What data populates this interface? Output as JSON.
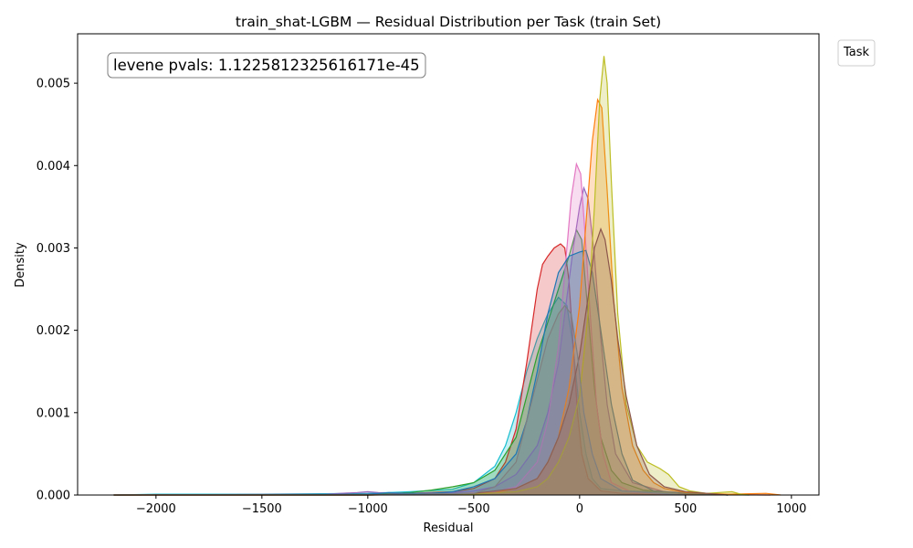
{
  "chart_data": {
    "type": "area",
    "title": "train_shat-LGBM — Residual Distribution per Task (train Set)",
    "xlabel": "Residual",
    "ylabel": "Density",
    "xlim": [
      -2370,
      1130
    ],
    "ylim": [
      0,
      0.0056
    ],
    "xticks": [
      -2000,
      -1500,
      -1000,
      -500,
      0,
      500,
      1000
    ],
    "xtick_labels": [
      "−2000",
      "−1500",
      "−1000",
      "−500",
      "0",
      "500",
      "1000"
    ],
    "yticks": [
      0,
      0.001,
      0.002,
      0.003,
      0.004,
      0.005
    ],
    "ytick_labels": [
      "0.000",
      "0.001",
      "0.002",
      "0.003",
      "0.004",
      "0.005"
    ],
    "grid": false,
    "legend": {
      "title": "Task",
      "placement": "outside-top-right",
      "entries": []
    },
    "annotation": "levene pvals: 1.1225812325616171e-45",
    "series": [
      {
        "color": "#17becf",
        "points": [
          [
            -2200,
            0
          ],
          [
            -2000,
            1e-05
          ],
          [
            -1500,
            1e-05
          ],
          [
            -1000,
            2e-05
          ],
          [
            -800,
            4e-05
          ],
          [
            -600,
            7e-05
          ],
          [
            -500,
            0.00015
          ],
          [
            -400,
            0.00035
          ],
          [
            -350,
            0.0006
          ],
          [
            -300,
            0.001
          ],
          [
            -250,
            0.0015
          ],
          [
            -200,
            0.0019
          ],
          [
            -150,
            0.0022
          ],
          [
            -100,
            0.0024
          ],
          [
            -60,
            0.0023
          ],
          [
            -30,
            0.0018
          ],
          [
            0,
            0.001
          ],
          [
            30,
            0.0005
          ],
          [
            60,
            0.0002
          ],
          [
            100,
            8e-05
          ],
          [
            200,
            5e-05
          ],
          [
            350,
            4e-05
          ],
          [
            500,
            3e-05
          ],
          [
            600,
            1e-05
          ],
          [
            800,
            0
          ]
        ]
      },
      {
        "color": "#d62728",
        "points": [
          [
            -2200,
            0
          ],
          [
            -1500,
            0
          ],
          [
            -1000,
            1e-05
          ],
          [
            -800,
            2e-05
          ],
          [
            -600,
            4e-05
          ],
          [
            -500,
            8e-05
          ],
          [
            -400,
            0.0002
          ],
          [
            -350,
            0.0004
          ],
          [
            -300,
            0.0008
          ],
          [
            -250,
            0.0016
          ],
          [
            -200,
            0.0025
          ],
          [
            -175,
            0.0028
          ],
          [
            -150,
            0.0029
          ],
          [
            -120,
            0.003
          ],
          [
            -90,
            0.00305
          ],
          [
            -70,
            0.003
          ],
          [
            -50,
            0.0026
          ],
          [
            -30,
            0.0018
          ],
          [
            -10,
            0.001
          ],
          [
            10,
            0.0005
          ],
          [
            40,
            0.0002
          ],
          [
            100,
            5e-05
          ],
          [
            200,
            2e-05
          ],
          [
            400,
            1e-05
          ],
          [
            900,
            0
          ]
        ]
      },
      {
        "color": "#2ca02c",
        "points": [
          [
            -2200,
            0
          ],
          [
            -1000,
            1e-05
          ],
          [
            -800,
            3e-05
          ],
          [
            -700,
            6e-05
          ],
          [
            -600,
            0.0001
          ],
          [
            -500,
            0.00015
          ],
          [
            -400,
            0.0003
          ],
          [
            -300,
            0.0007
          ],
          [
            -250,
            0.0012
          ],
          [
            -200,
            0.0017
          ],
          [
            -150,
            0.0021
          ],
          [
            -100,
            0.0025
          ],
          [
            -50,
            0.0029
          ],
          [
            -15,
            0.00322
          ],
          [
            10,
            0.0031
          ],
          [
            40,
            0.0022
          ],
          [
            70,
            0.0013
          ],
          [
            100,
            0.0007
          ],
          [
            150,
            0.0003
          ],
          [
            200,
            0.00015
          ],
          [
            300,
            6e-05
          ],
          [
            500,
            2e-05
          ],
          [
            700,
            0
          ]
        ]
      },
      {
        "color": "#9467bd",
        "points": [
          [
            -2200,
            0
          ],
          [
            -1200,
            1e-05
          ],
          [
            -1050,
            3e-05
          ],
          [
            -1000,
            4e-05
          ],
          [
            -950,
            3e-05
          ],
          [
            -800,
            2e-05
          ],
          [
            -600,
            3e-05
          ],
          [
            -500,
            5e-05
          ],
          [
            -400,
            0.0001
          ],
          [
            -300,
            0.00025
          ],
          [
            -200,
            0.0006
          ],
          [
            -150,
            0.001
          ],
          [
            -100,
            0.0016
          ],
          [
            -60,
            0.0024
          ],
          [
            -30,
            0.003
          ],
          [
            0,
            0.0035
          ],
          [
            20,
            0.00373
          ],
          [
            40,
            0.0036
          ],
          [
            70,
            0.0029
          ],
          [
            100,
            0.0019
          ],
          [
            130,
            0.0011
          ],
          [
            170,
            0.0005
          ],
          [
            250,
            0.00015
          ],
          [
            400,
            4e-05
          ],
          [
            700,
            0
          ]
        ]
      },
      {
        "color": "#e377c2",
        "points": [
          [
            -2200,
            0
          ],
          [
            -1000,
            0
          ],
          [
            -600,
            1e-05
          ],
          [
            -400,
            4e-05
          ],
          [
            -300,
            0.0001
          ],
          [
            -200,
            0.0004
          ],
          [
            -150,
            0.0009
          ],
          [
            -100,
            0.0018
          ],
          [
            -70,
            0.0027
          ],
          [
            -40,
            0.0036
          ],
          [
            -15,
            0.00402
          ],
          [
            5,
            0.0039
          ],
          [
            25,
            0.0032
          ],
          [
            50,
            0.0022
          ],
          [
            80,
            0.0011
          ],
          [
            110,
            0.0005
          ],
          [
            150,
            0.00015
          ],
          [
            250,
            3e-05
          ],
          [
            500,
            0
          ]
        ]
      },
      {
        "color": "#1f77b4",
        "points": [
          [
            -2200,
            0
          ],
          [
            -1000,
            1e-05
          ],
          [
            -900,
            3e-05
          ],
          [
            -850,
            2e-05
          ],
          [
            -700,
            2e-05
          ],
          [
            -600,
            4e-05
          ],
          [
            -500,
            0.0001
          ],
          [
            -400,
            0.0002
          ],
          [
            -300,
            0.0005
          ],
          [
            -250,
            0.0009
          ],
          [
            -200,
            0.0015
          ],
          [
            -150,
            0.0022
          ],
          [
            -100,
            0.0027
          ],
          [
            -50,
            0.0029
          ],
          [
            0,
            0.00295
          ],
          [
            30,
            0.00297
          ],
          [
            60,
            0.0027
          ],
          [
            100,
            0.002
          ],
          [
            150,
            0.0011
          ],
          [
            200,
            0.0005
          ],
          [
            250,
            0.00018
          ],
          [
            350,
            5e-05
          ],
          [
            500,
            2e-05
          ],
          [
            700,
            0
          ]
        ]
      },
      {
        "color": "#ff7f0e",
        "points": [
          [
            -2200,
            0
          ],
          [
            -1000,
            0
          ],
          [
            -600,
            1e-05
          ],
          [
            -400,
            3e-05
          ],
          [
            -300,
            8e-05
          ],
          [
            -200,
            0.0002
          ],
          [
            -150,
            0.0004
          ],
          [
            -100,
            0.0007
          ],
          [
            -50,
            0.0013
          ],
          [
            0,
            0.0023
          ],
          [
            30,
            0.0033
          ],
          [
            60,
            0.0043
          ],
          [
            85,
            0.0048
          ],
          [
            105,
            0.0047
          ],
          [
            130,
            0.0037
          ],
          [
            160,
            0.0024
          ],
          [
            200,
            0.0013
          ],
          [
            250,
            0.0006
          ],
          [
            300,
            0.0003
          ],
          [
            350,
            0.00015
          ],
          [
            400,
            8e-05
          ],
          [
            500,
            3e-05
          ],
          [
            700,
            1e-05
          ],
          [
            880,
            2e-05
          ],
          [
            950,
            0
          ]
        ]
      },
      {
        "color": "#bcbd22",
        "points": [
          [
            -2200,
            0
          ],
          [
            -1000,
            0
          ],
          [
            -500,
            1e-05
          ],
          [
            -300,
            4e-05
          ],
          [
            -200,
            0.0001
          ],
          [
            -150,
            0.0002
          ],
          [
            -100,
            0.0004
          ],
          [
            -50,
            0.0007
          ],
          [
            0,
            0.0012
          ],
          [
            40,
            0.0022
          ],
          [
            70,
            0.0035
          ],
          [
            95,
            0.0048
          ],
          [
            115,
            0.00533
          ],
          [
            130,
            0.005
          ],
          [
            150,
            0.0038
          ],
          [
            180,
            0.0022
          ],
          [
            220,
            0.0011
          ],
          [
            270,
            0.0006
          ],
          [
            320,
            0.0004
          ],
          [
            380,
            0.00032
          ],
          [
            420,
            0.00025
          ],
          [
            470,
            0.0001
          ],
          [
            520,
            5e-05
          ],
          [
            600,
            2e-05
          ],
          [
            720,
            4e-05
          ],
          [
            760,
            1e-05
          ],
          [
            800,
            0
          ]
        ]
      },
      {
        "color": "#8c564b",
        "points": [
          [
            -2200,
            0
          ],
          [
            -1000,
            0
          ],
          [
            -500,
            2e-05
          ],
          [
            -300,
            8e-05
          ],
          [
            -200,
            0.0002
          ],
          [
            -150,
            0.0004
          ],
          [
            -100,
            0.0007
          ],
          [
            -50,
            0.0011
          ],
          [
            0,
            0.0017
          ],
          [
            40,
            0.0024
          ],
          [
            70,
            0.003
          ],
          [
            100,
            0.00323
          ],
          [
            120,
            0.0031
          ],
          [
            150,
            0.0026
          ],
          [
            180,
            0.0019
          ],
          [
            220,
            0.0012
          ],
          [
            270,
            0.0006
          ],
          [
            330,
            0.00025
          ],
          [
            400,
            0.0001
          ],
          [
            500,
            4e-05
          ],
          [
            700,
            0
          ]
        ]
      },
      {
        "color": "#7f7f7f",
        "points": [
          [
            -2200,
            0
          ],
          [
            -1000,
            0
          ],
          [
            -500,
            2e-05
          ],
          [
            -400,
            0.0001
          ],
          [
            -300,
            0.0004
          ],
          [
            -250,
            0.0009
          ],
          [
            -200,
            0.0014
          ],
          [
            -150,
            0.0019
          ],
          [
            -100,
            0.0022
          ],
          [
            -70,
            0.0023
          ],
          [
            -40,
            0.0022
          ],
          [
            -10,
            0.0017
          ],
          [
            20,
            0.001
          ],
          [
            60,
            0.0005
          ],
          [
            100,
            0.0002
          ],
          [
            200,
            5e-05
          ],
          [
            500,
            0
          ]
        ]
      }
    ]
  }
}
